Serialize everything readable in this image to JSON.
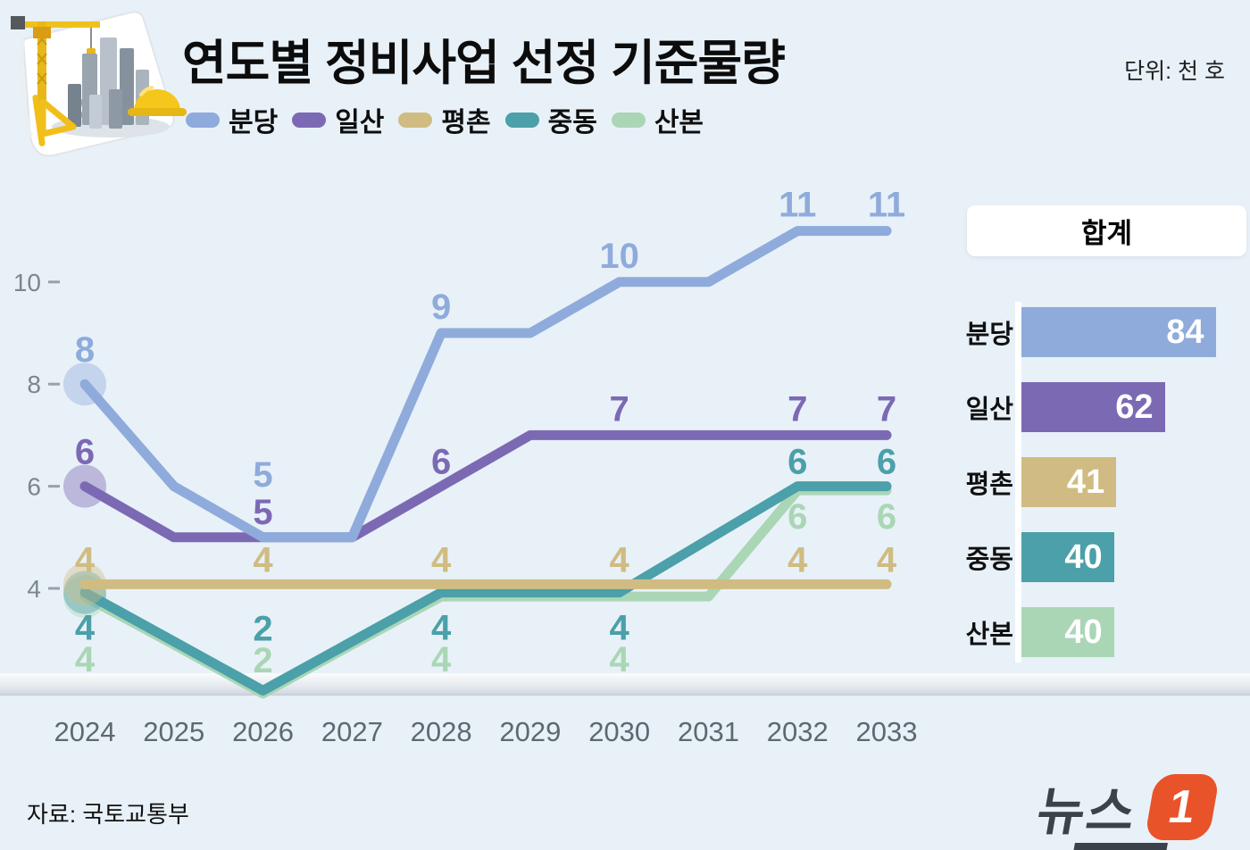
{
  "header": {
    "title": "연도별 정비사업 선정 기준물량",
    "unit_label": "단위: 천 호",
    "illustration": "construction-crane-buildings-hardhat"
  },
  "colors": {
    "background": "#e8f1f8",
    "bundang": "#8fabdb",
    "ilsan": "#7c69b4",
    "pyeongchon": "#d0bc82",
    "jungdong": "#4ba0a9",
    "sanbon": "#aad6b6",
    "logo_orange": "#e9532a"
  },
  "legend_items": [
    {
      "key": "bundang",
      "label": "분당",
      "color": "#8fabdb"
    },
    {
      "key": "ilsan",
      "label": "일산",
      "color": "#7c69b4"
    },
    {
      "key": "pyeongchon",
      "label": "평촌",
      "color": "#d0bc82"
    },
    {
      "key": "jungdong",
      "label": "중동",
      "color": "#4ba0a9"
    },
    {
      "key": "sanbon",
      "label": "산본",
      "color": "#aad6b6"
    }
  ],
  "chart_data": {
    "type": "line",
    "title": "연도별 정비사업 선정 기준물량",
    "unit": "천 호",
    "x": [
      2024,
      2025,
      2026,
      2027,
      2028,
      2029,
      2030,
      2031,
      2032,
      2033
    ],
    "yticks": [
      4,
      6,
      8,
      10
    ],
    "ylim": [
      1.5,
      12
    ],
    "grid": false,
    "label_years": [
      2024,
      2026,
      2028,
      2030,
      2032,
      2033
    ],
    "series": [
      {
        "key": "bundang",
        "name": "분당",
        "color": "#8fabdb",
        "values": [
          8,
          6,
          5,
          5,
          9,
          9,
          10,
          10,
          11,
          11
        ],
        "labels": [
          8,
          5,
          9,
          10,
          11,
          11
        ]
      },
      {
        "key": "ilsan",
        "name": "일산",
        "color": "#7c69b4",
        "values": [
          6,
          5,
          5,
          5,
          6,
          7,
          7,
          7,
          7,
          7
        ],
        "labels": [
          6,
          5,
          6,
          7,
          7,
          7
        ]
      },
      {
        "key": "pyeongchon",
        "name": "평촌",
        "color": "#d0bc82",
        "values": [
          4,
          4,
          4,
          4,
          4,
          4,
          4,
          4,
          4,
          4
        ],
        "labels": [
          4,
          4,
          4,
          4,
          4,
          4
        ]
      },
      {
        "key": "jungdong",
        "name": "중동",
        "color": "#4ba0a9",
        "values": [
          4,
          3,
          2,
          3,
          4,
          4,
          4,
          5,
          6,
          6
        ],
        "labels": [
          4,
          2,
          4,
          4,
          6,
          6
        ]
      },
      {
        "key": "sanbon",
        "name": "산본",
        "color": "#aad6b6",
        "values": [
          4,
          3,
          2,
          3,
          4,
          4,
          4,
          4,
          6,
          6
        ],
        "labels": [
          4,
          2,
          4,
          4,
          6,
          6
        ]
      }
    ]
  },
  "totals_panel": {
    "title": "합계",
    "rows": [
      {
        "key": "bundang",
        "label": "분당",
        "value": 84,
        "color": "#8fabdb"
      },
      {
        "key": "ilsan",
        "label": "일산",
        "value": 62,
        "color": "#7c69b4"
      },
      {
        "key": "pyeongchon",
        "label": "평촌",
        "value": 41,
        "color": "#d0bc82"
      },
      {
        "key": "jungdong",
        "label": "중동",
        "value": 40,
        "color": "#4ba0a9"
      },
      {
        "key": "sanbon",
        "label": "산본",
        "value": 40,
        "color": "#aad6b6"
      }
    ]
  },
  "footer": {
    "source": "자료: 국토교통부",
    "logo": {
      "text": "뉴스",
      "number": "1"
    }
  }
}
